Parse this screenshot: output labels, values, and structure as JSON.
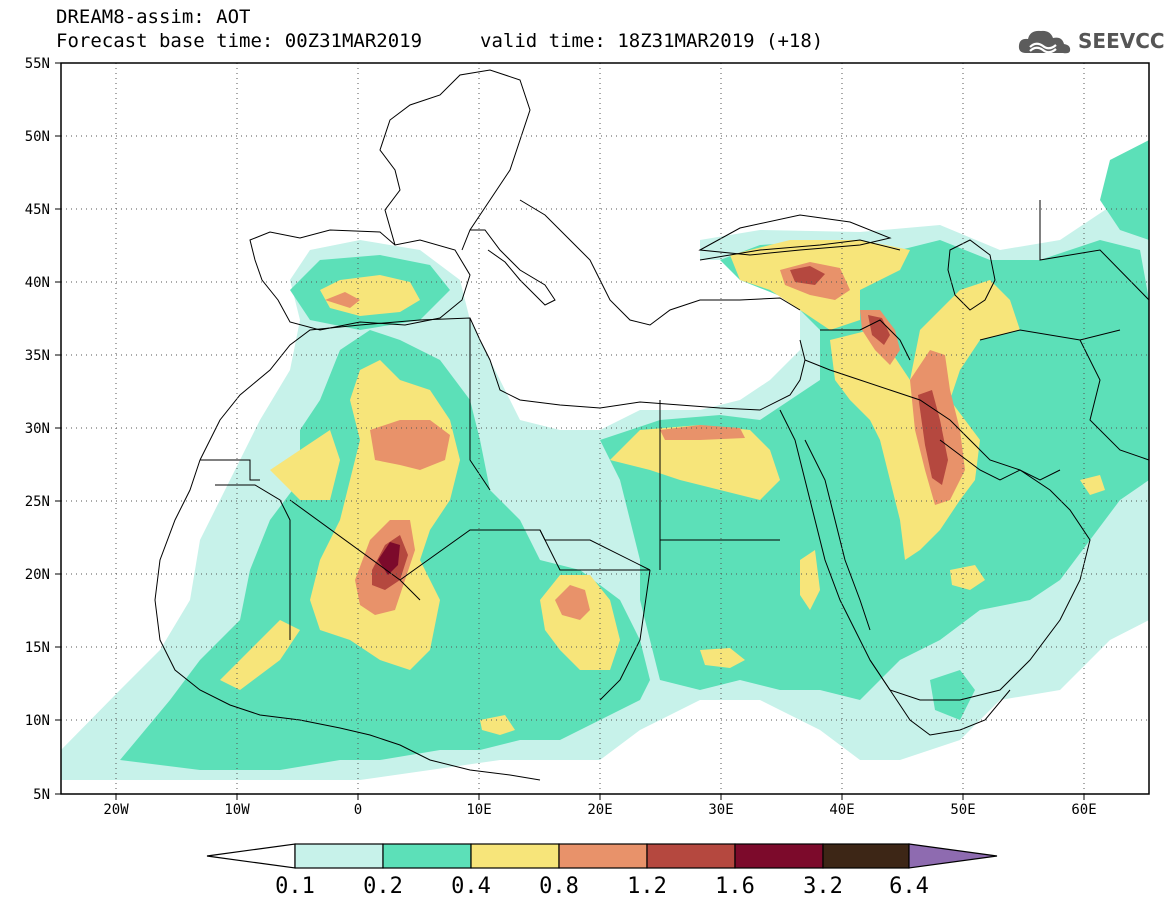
{
  "header": {
    "title": "DREAM8-assim: AOT",
    "base_time": "Forecast base time: 00Z31MAR2019",
    "valid_time": "valid time: 18Z31MAR2019 (+18)"
  },
  "logo": {
    "text": "SEEVCCC",
    "icon": "cloud-logo-icon"
  },
  "map": {
    "lon_range": [
      -25,
      65
    ],
    "lat_range": [
      5,
      55
    ],
    "lat_ticks": [
      "55N",
      "50N",
      "45N",
      "40N",
      "35N",
      "30N",
      "25N",
      "20N",
      "15N",
      "10N",
      "5N"
    ],
    "lon_ticks": [
      "20W",
      "10W",
      "0",
      "10E",
      "20E",
      "30E",
      "40E",
      "50E",
      "60E"
    ]
  },
  "colorbar": {
    "labels": [
      "0.1",
      "0.2",
      "0.4",
      "0.8",
      "1.2",
      "1.6",
      "3.2",
      "6.4"
    ],
    "colors": [
      "#ffffff",
      "#c7f2ea",
      "#5ce0b8",
      "#f7e57a",
      "#e8926a",
      "#b5483f",
      "#7c0a2b",
      "#3d2616",
      "#8e6bb0"
    ]
  }
}
